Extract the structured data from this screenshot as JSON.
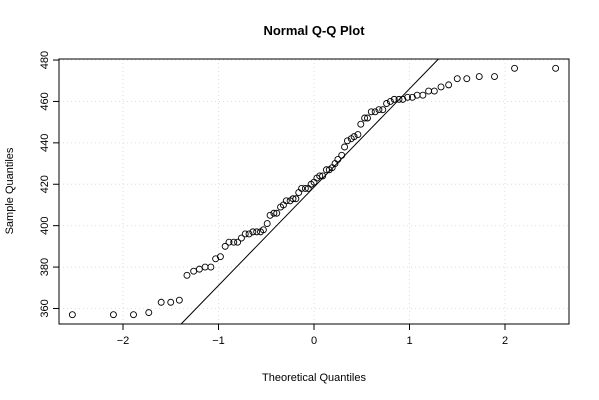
{
  "chart_data": {
    "type": "scatter",
    "title": "Normal Q-Q Plot",
    "xlabel": "Theoretical Quantiles",
    "ylabel": "Sample Quantiles",
    "xlim": [
      -2.67,
      2.67
    ],
    "ylim": [
      352.5,
      480.5
    ],
    "x_ticks": [
      -2,
      -1,
      0,
      1,
      2
    ],
    "x_tick_labels": [
      "−2",
      "−1",
      "0",
      "1",
      "2"
    ],
    "y_ticks": [
      360,
      380,
      400,
      420,
      440,
      460,
      480
    ],
    "y_tick_labels": [
      "360",
      "380",
      "400",
      "420",
      "440",
      "460",
      "480"
    ],
    "grid": true,
    "reference_line": {
      "slope": 47.5,
      "intercept": 418.6
    },
    "series": [
      {
        "x": [
          -2.53,
          -2.1,
          -1.89,
          -1.73,
          -1.6,
          -1.5,
          -1.41,
          -1.33,
          -1.26,
          -1.2,
          -1.14,
          -1.08,
          -1.03,
          -0.98,
          -0.93,
          -0.89,
          -0.84,
          -0.8,
          -0.76,
          -0.72,
          -0.68,
          -0.64,
          -0.6,
          -0.56,
          -0.53,
          -0.49,
          -0.46,
          -0.42,
          -0.39,
          -0.35,
          -0.32,
          -0.29,
          -0.25,
          -0.22,
          -0.19,
          -0.16,
          -0.13,
          -0.09,
          -0.06,
          -0.03,
          0.0,
          0.03,
          0.06,
          0.09,
          0.13,
          0.16,
          0.19,
          0.22,
          0.25,
          0.29,
          0.32,
          0.35,
          0.39,
          0.42,
          0.46,
          0.49,
          0.53,
          0.56,
          0.6,
          0.64,
          0.68,
          0.72,
          0.76,
          0.8,
          0.84,
          0.89,
          0.93,
          0.98,
          1.03,
          1.08,
          1.14,
          1.2,
          1.26,
          1.33,
          1.41,
          1.5,
          1.6,
          1.73,
          1.89,
          2.1,
          2.53
        ],
        "y": [
          357,
          357,
          357,
          358,
          363,
          363,
          364,
          376,
          378,
          379,
          380,
          380,
          384,
          385,
          390,
          392,
          392,
          392,
          394,
          396,
          396,
          397,
          397,
          397,
          398,
          401,
          405,
          406,
          406,
          409,
          410,
          412,
          412,
          413,
          413,
          416,
          418,
          418,
          418,
          420,
          421,
          423,
          424,
          424,
          427,
          427,
          428,
          430,
          432,
          434,
          438,
          441,
          442,
          443,
          444,
          449,
          452,
          452,
          455,
          455,
          456,
          456,
          459,
          460,
          461,
          461,
          461,
          462,
          462,
          463,
          463,
          465,
          465,
          467,
          468,
          471,
          471,
          472,
          472,
          476,
          476
        ]
      }
    ]
  }
}
